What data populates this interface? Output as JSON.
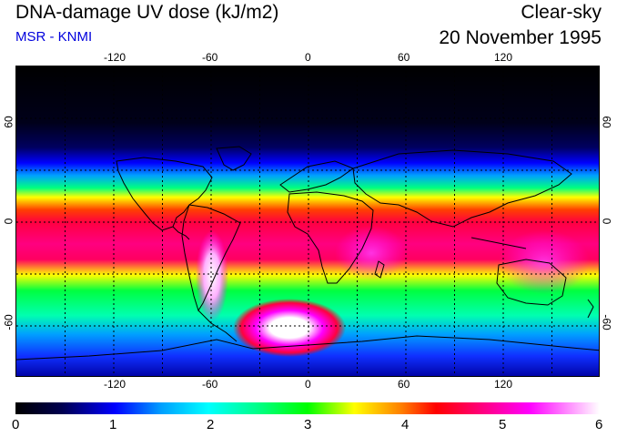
{
  "header": {
    "title": "DNA-damage UV dose (kJ/m2)",
    "subtitle": "MSR - KNMI",
    "condition": "Clear-sky",
    "date": "20 November 1995"
  },
  "map": {
    "lon_ticks": [
      "-120",
      "-60",
      "0",
      "60",
      "120"
    ],
    "lat_ticks": [
      "60",
      "0",
      "-60"
    ],
    "lon_range": [
      -180,
      180
    ],
    "lat_range": [
      -90,
      90
    ],
    "grid_lons": [
      -150,
      -120,
      -90,
      -60,
      -30,
      0,
      30,
      60,
      90,
      120,
      150
    ],
    "grid_lats": [
      -60,
      -30,
      0,
      30,
      60
    ]
  },
  "colorbar": {
    "labels": [
      "0",
      "1",
      "2",
      "3",
      "4",
      "5",
      "6"
    ],
    "min": 0,
    "max": 6,
    "colors": [
      "#000000",
      "#000088",
      "#0000ff",
      "#00a0ff",
      "#00ffff",
      "#00ff80",
      "#00ff00",
      "#ffff00",
      "#ff8000",
      "#ff0000",
      "#ff0080",
      "#ff00ff",
      "#ffffff"
    ]
  }
}
